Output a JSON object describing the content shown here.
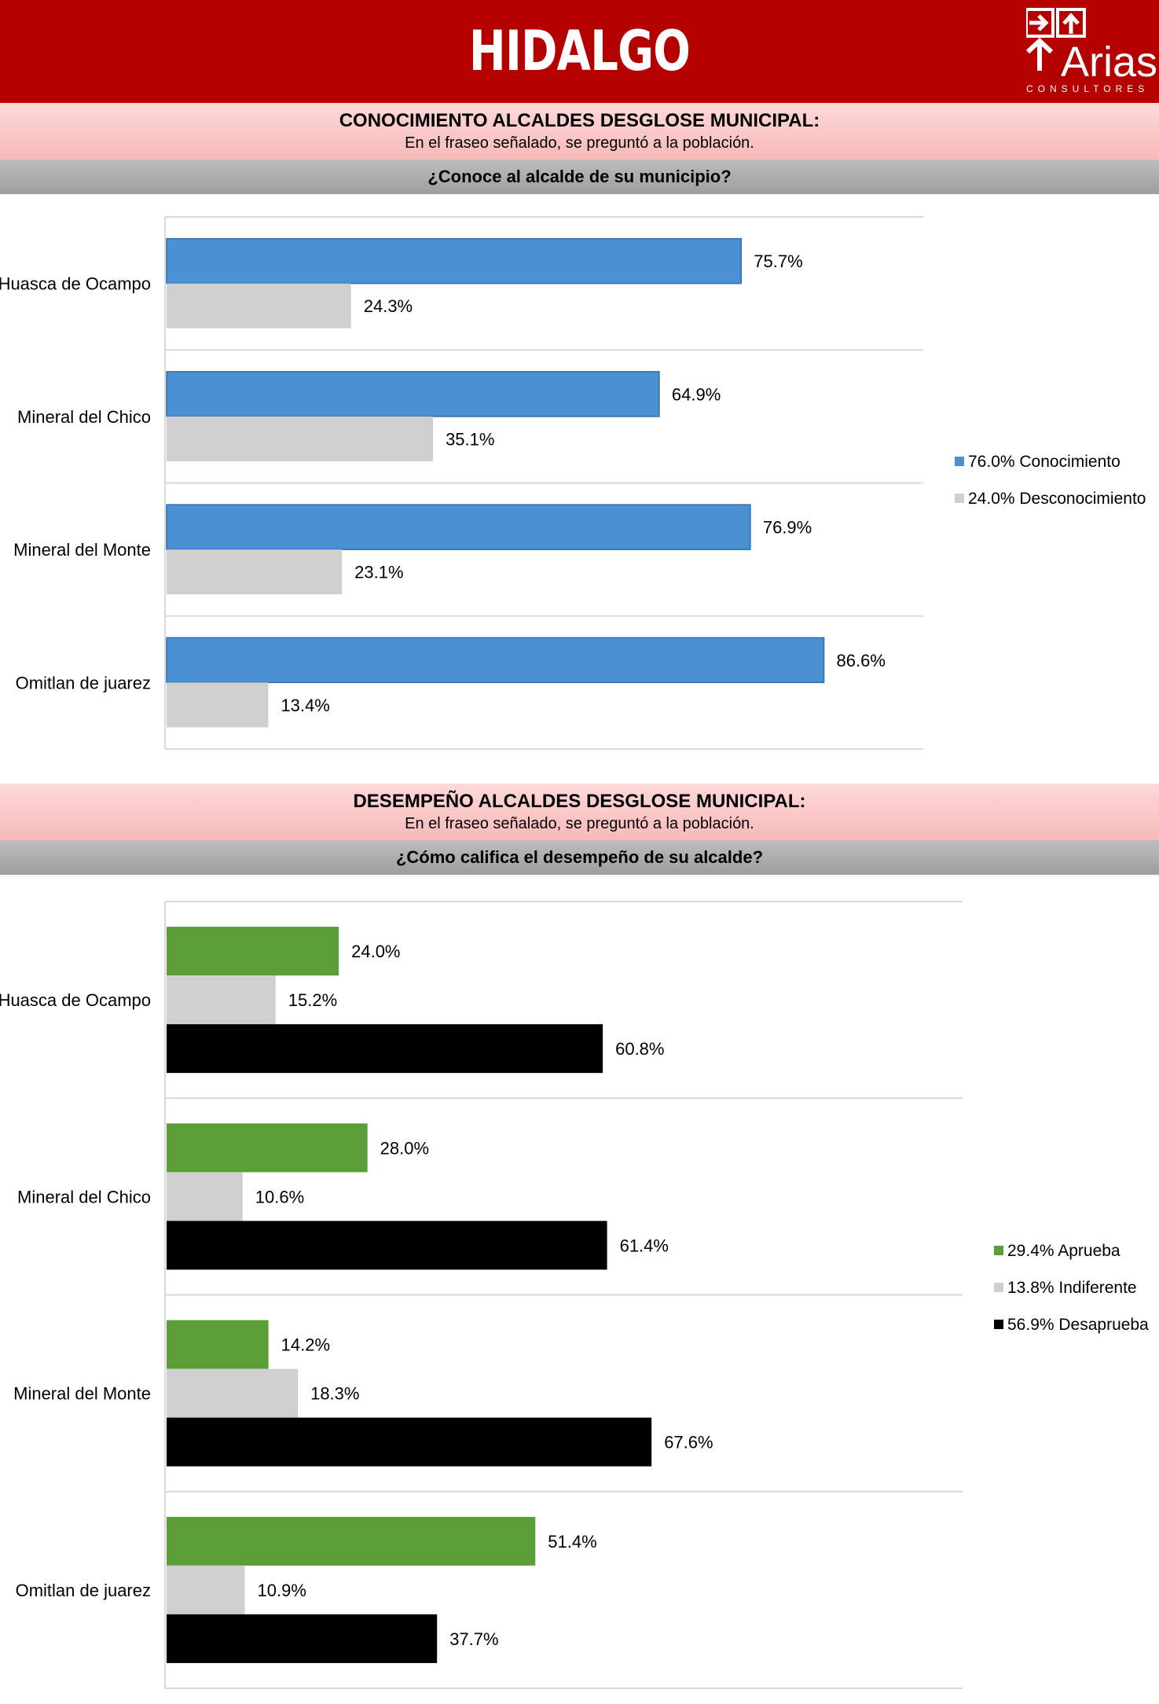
{
  "header": {
    "title": "HIDALGO",
    "logo_word": "Arias",
    "logo_sub": "CONSULTORES"
  },
  "section1": {
    "title": "CONOCIMIENTO ALCALDES DESGLOSE MUNICIPAL:",
    "subtitle": "En el fraseo señalado, se preguntó a la población.",
    "question": "¿Conoce al alcalde de su municipio?"
  },
  "section2": {
    "title": "DESEMPEÑO ALCALDES  DESGLOSE MUNICIPAL:",
    "subtitle": "En el fraseo señalado, se preguntó a la población.",
    "question": "¿Cómo califica el desempeño de su alcalde?"
  },
  "colors": {
    "banner": "#b50000",
    "conocimiento": "#4a90d2",
    "desconocimiento": "#cfcfcf",
    "aprueba": "#5a9e35",
    "indiferente": "#cfcfcf",
    "desaprueba": "#000000"
  },
  "chart_data": [
    {
      "type": "bar",
      "orientation": "horizontal",
      "title": "¿Conoce al alcalde de su municipio?",
      "categories": [
        "Huasca de Ocampo",
        "Mineral del Chico",
        "Mineral del Monte",
        "Omitlan de juarez"
      ],
      "series": [
        {
          "name": "Conocimiento",
          "legend_label": "76.0% Conocimiento",
          "color": "#4a90d2",
          "values": [
            75.7,
            64.9,
            76.9,
            86.6
          ]
        },
        {
          "name": "Desconocimiento",
          "legend_label": "24.0% Desconocimiento",
          "color": "#cfcfcf",
          "values": [
            24.3,
            35.1,
            23.1,
            13.4
          ]
        }
      ],
      "value_suffix": "%",
      "xlim": [
        0,
        100
      ],
      "legend_position": "right"
    },
    {
      "type": "bar",
      "orientation": "horizontal",
      "title": "¿Cómo califica el desempeño de su alcalde?",
      "categories": [
        "Huasca de Ocampo",
        "Mineral del Chico",
        "Mineral del Monte",
        "Omitlan de juarez"
      ],
      "series": [
        {
          "name": "Aprueba",
          "legend_label": "29.4% Aprueba",
          "color": "#5a9e35",
          "values": [
            24.0,
            28.0,
            14.2,
            51.4
          ]
        },
        {
          "name": "Indiferente",
          "legend_label": "13.8% Indiferente",
          "color": "#cfcfcf",
          "values": [
            15.2,
            10.6,
            18.3,
            10.9
          ]
        },
        {
          "name": "Desaprueba",
          "legend_label": "56.9% Desaprueba",
          "color": "#000000",
          "values": [
            60.8,
            61.4,
            67.6,
            37.7
          ]
        }
      ],
      "value_suffix": "%",
      "xlim": [
        0,
        100
      ],
      "legend_position": "right"
    }
  ]
}
